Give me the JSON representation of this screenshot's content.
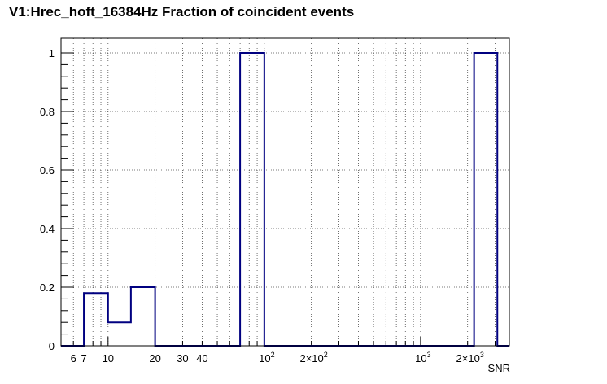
{
  "chart_data": {
    "type": "histogram",
    "title": "V1:Hrec_hoft_16384Hz Fraction of coincident events",
    "xlabel": "SNR",
    "ylabel": "",
    "xscale": "log",
    "xlim": [
      5,
      3700
    ],
    "ylim": [
      0,
      1.05
    ],
    "grid": true,
    "line_color": "#000080",
    "bins": [
      {
        "x0": 5,
        "x1": 7,
        "y": 0
      },
      {
        "x0": 7,
        "x1": 10,
        "y": 0.18
      },
      {
        "x0": 10,
        "x1": 14,
        "y": 0.08
      },
      {
        "x0": 14,
        "x1": 20,
        "y": 0.2
      },
      {
        "x0": 20,
        "x1": 70,
        "y": 0
      },
      {
        "x0": 70,
        "x1": 100,
        "y": 1
      },
      {
        "x0": 100,
        "x1": 2200,
        "y": 0
      },
      {
        "x0": 2200,
        "x1": 3100,
        "y": 1
      },
      {
        "x0": 3100,
        "x1": 3700,
        "y": 0
      }
    ],
    "x_tick_labels": [
      {
        "value": 6,
        "label": "6"
      },
      {
        "value": 7,
        "label": "7"
      },
      {
        "value": 10,
        "label": "10"
      },
      {
        "value": 20,
        "label": "20"
      },
      {
        "value": 30,
        "label": "30"
      },
      {
        "value": 40,
        "label": "40"
      },
      {
        "value": 100,
        "label": "10",
        "sup": "2"
      },
      {
        "value": 200,
        "label": "2×10",
        "sup": "2"
      },
      {
        "value": 1000,
        "label": "10",
        "sup": "3"
      },
      {
        "value": 2000,
        "label": "2×10",
        "sup": "3"
      }
    ],
    "y_tick_labels": [
      {
        "value": 0,
        "label": "0"
      },
      {
        "value": 0.2,
        "label": "0.2"
      },
      {
        "value": 0.4,
        "label": "0.4"
      },
      {
        "value": 0.6,
        "label": "0.6"
      },
      {
        "value": 0.8,
        "label": "0.8"
      },
      {
        "value": 1,
        "label": "1"
      }
    ]
  }
}
